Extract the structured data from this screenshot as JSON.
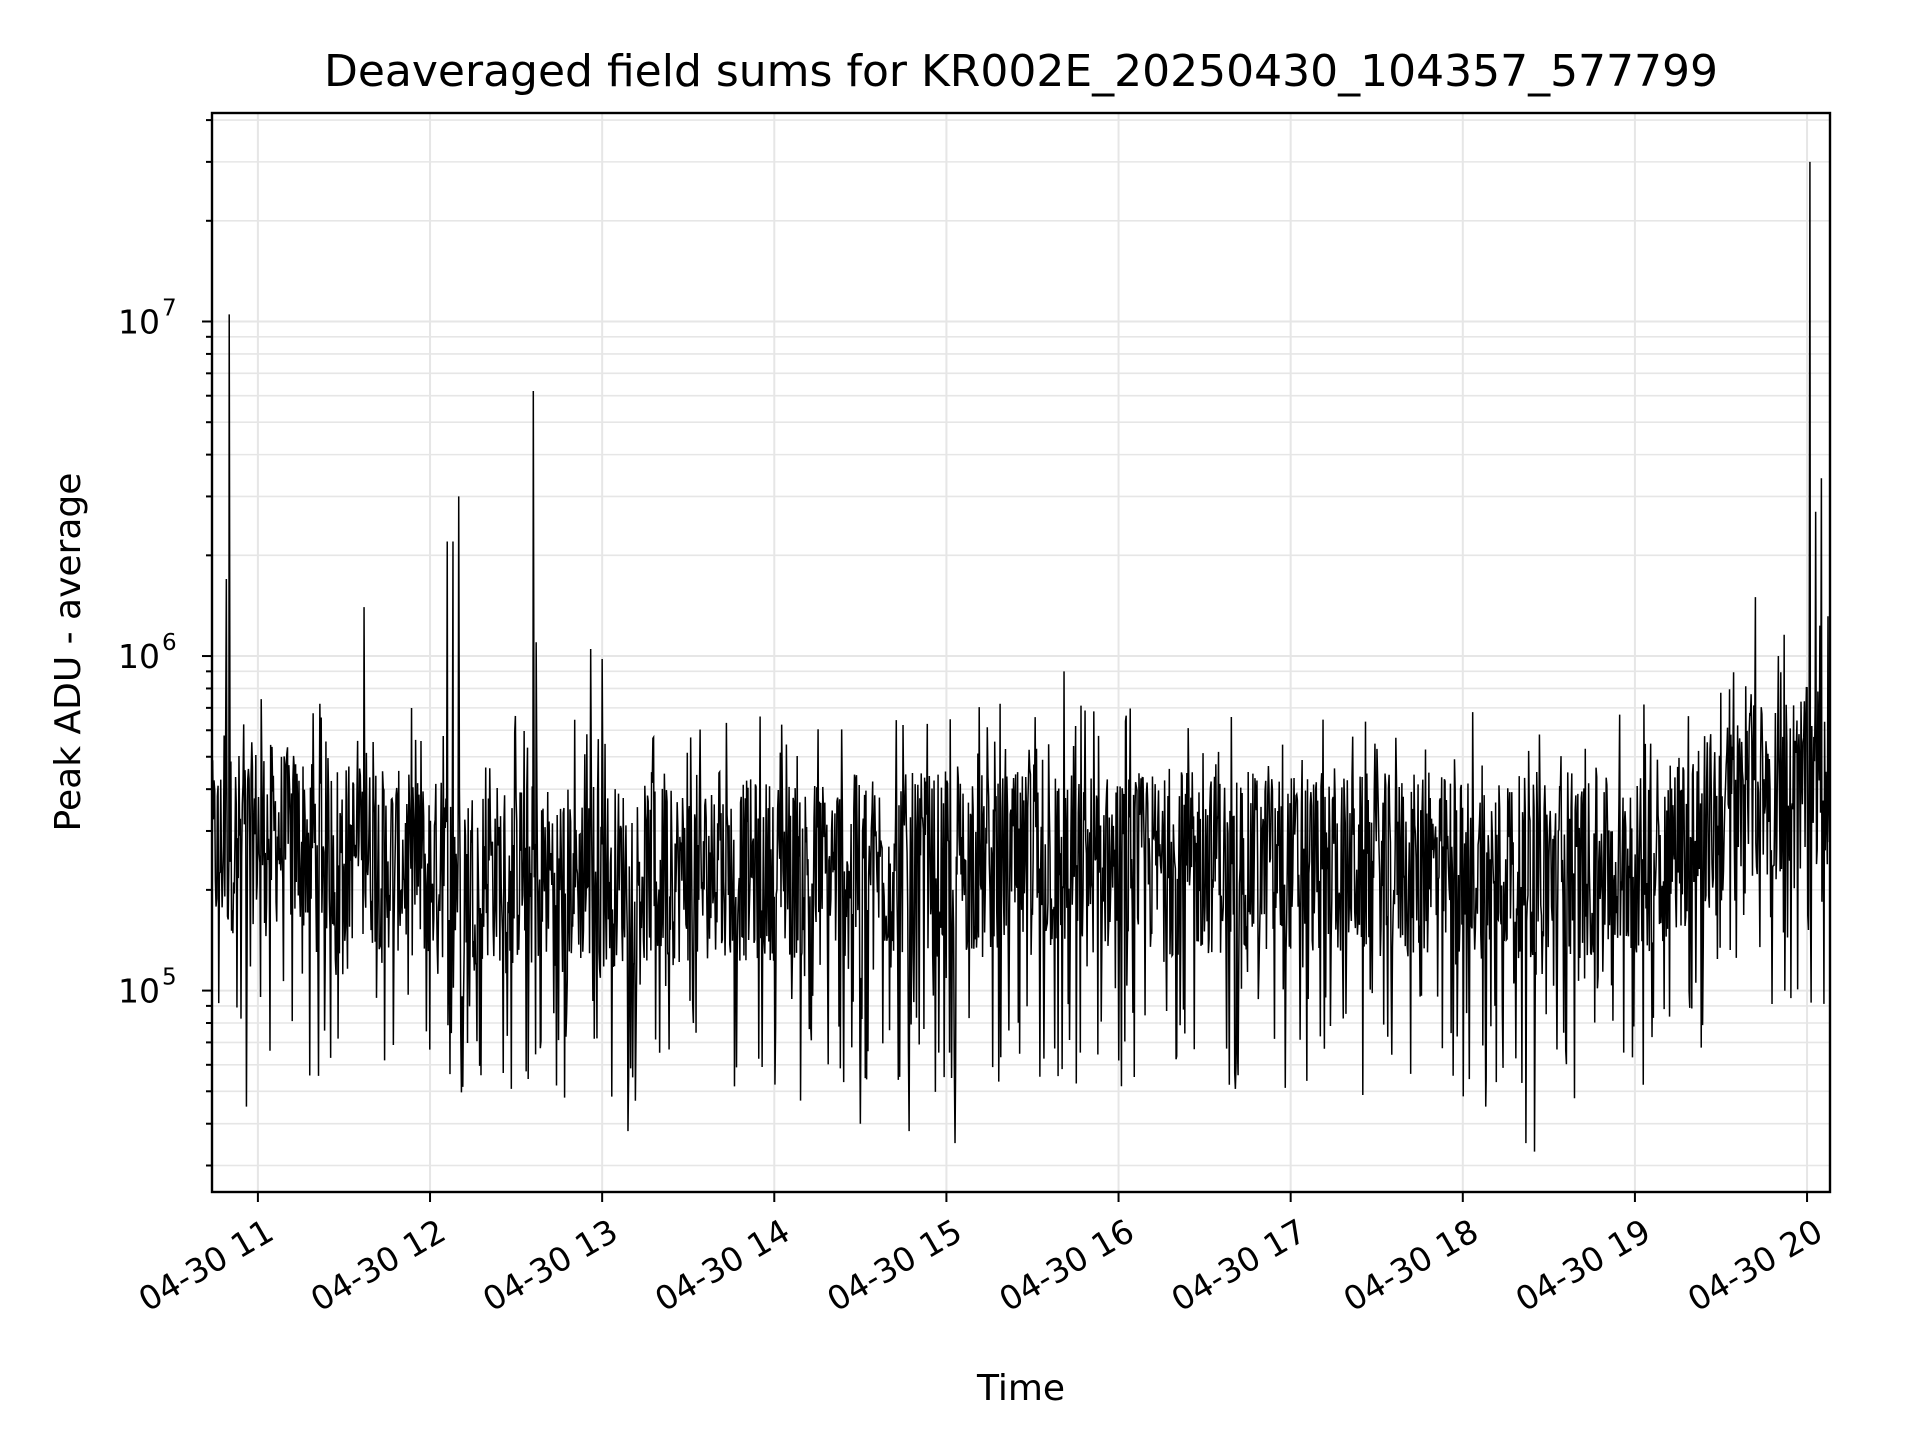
{
  "chart_data": {
    "type": "line",
    "title": "Deaveraged field sums for KR002E_20250430_104357_577799",
    "xlabel": "Time",
    "ylabel": "Peak ADU - average",
    "x_scale": "time",
    "y_scale": "log",
    "xlim": [
      "2025-04-30 10:44",
      "2025-04-30 20:08"
    ],
    "ylim": [
      25000,
      42000000
    ],
    "x_ticks": [
      "04-30 11",
      "04-30 12",
      "04-30 13",
      "04-30 14",
      "04-30 15",
      "04-30 16",
      "04-30 17",
      "04-30 18",
      "04-30 19",
      "04-30 20"
    ],
    "y_ticks": [
      {
        "base": "10",
        "exp": "5",
        "value": 100000
      },
      {
        "base": "10",
        "exp": "6",
        "value": 1000000
      },
      {
        "base": "10",
        "exp": "7",
        "value": 10000000
      }
    ],
    "grid": true,
    "line_color": "#000000",
    "grid_color": "#e6e6e6",
    "series": [
      {
        "name": "",
        "baseline_approx": [
          {
            "x": "2025-04-30 10:44",
            "y": 260000
          },
          {
            "x": "2025-04-30 11:00",
            "y": 300000
          },
          {
            "x": "2025-04-30 12:00",
            "y": 230000
          },
          {
            "x": "2025-04-30 13:00",
            "y": 220000
          },
          {
            "x": "2025-04-30 14:00",
            "y": 230000
          },
          {
            "x": "2025-04-30 15:00",
            "y": 240000
          },
          {
            "x": "2025-04-30 16:00",
            "y": 240000
          },
          {
            "x": "2025-04-30 17:00",
            "y": 240000
          },
          {
            "x": "2025-04-30 18:00",
            "y": 235000
          },
          {
            "x": "2025-04-30 19:00",
            "y": 230000
          },
          {
            "x": "2025-04-30 19:40",
            "y": 380000
          },
          {
            "x": "2025-04-30 20:08",
            "y": 450000
          }
        ],
        "peaks": [
          {
            "x": "2025-04-30 10:50",
            "y": 10500000
          },
          {
            "x": "2025-04-30 10:49",
            "y": 1700000
          },
          {
            "x": "2025-04-30 11:37",
            "y": 1400000
          },
          {
            "x": "2025-04-30 12:06",
            "y": 2200000
          },
          {
            "x": "2025-04-30 12:08",
            "y": 2200000
          },
          {
            "x": "2025-04-30 12:10",
            "y": 3000000
          },
          {
            "x": "2025-04-30 12:36",
            "y": 6200000
          },
          {
            "x": "2025-04-30 12:37",
            "y": 1100000
          },
          {
            "x": "2025-04-30 12:56",
            "y": 1050000
          },
          {
            "x": "2025-04-30 13:00",
            "y": 980000
          },
          {
            "x": "2025-04-30 15:41",
            "y": 900000
          },
          {
            "x": "2025-04-30 19:42",
            "y": 1500000
          },
          {
            "x": "2025-04-30 19:50",
            "y": 1000000
          },
          {
            "x": "2025-04-30 20:01",
            "y": 30000000
          },
          {
            "x": "2025-04-30 20:03",
            "y": 2700000
          },
          {
            "x": "2025-04-30 20:05",
            "y": 3400000
          }
        ],
        "troughs": [
          {
            "x": "2025-04-30 10:56",
            "y": 45000
          },
          {
            "x": "2025-04-30 13:09",
            "y": 38000
          },
          {
            "x": "2025-04-30 14:47",
            "y": 38000
          },
          {
            "x": "2025-04-30 15:03",
            "y": 35000
          },
          {
            "x": "2025-04-30 18:22",
            "y": 35000
          },
          {
            "x": "2025-04-30 18:25",
            "y": 33000
          },
          {
            "x": "2025-04-30 14:30",
            "y": 40000
          },
          {
            "x": "2025-04-30 18:08",
            "y": 45000
          }
        ]
      }
    ]
  }
}
